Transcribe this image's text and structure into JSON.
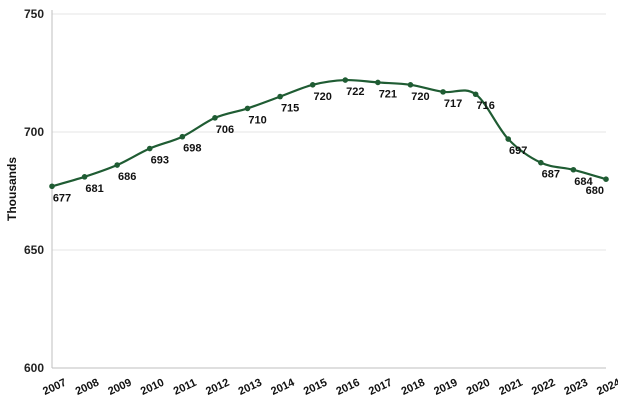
{
  "chart_data": {
    "type": "line",
    "title": "",
    "xlabel": "",
    "ylabel": "Thousands",
    "ylim": [
      600,
      750
    ],
    "yticks": [
      600,
      650,
      700,
      750
    ],
    "grid": true,
    "legend": "none",
    "categories": [
      "2007",
      "2008",
      "2009",
      "2010",
      "2011",
      "2012",
      "2013",
      "2014",
      "2015",
      "2016",
      "2017",
      "2018",
      "2019",
      "2020",
      "2021",
      "2022",
      "2023",
      "2024"
    ],
    "series": [
      {
        "values": [
          677,
          681,
          686,
          693,
          698,
          706,
          710,
          715,
          720,
          722,
          721,
          720,
          717,
          716,
          697,
          687,
          684,
          680
        ],
        "color": "#1f5c33"
      }
    ]
  }
}
